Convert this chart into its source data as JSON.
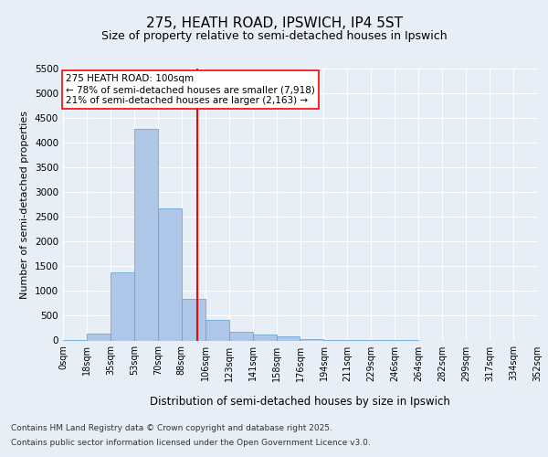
{
  "title_line1": "275, HEATH ROAD, IPSWICH, IP4 5ST",
  "title_line2": "Size of property relative to semi-detached houses in Ipswich",
  "xlabel": "Distribution of semi-detached houses by size in Ipswich",
  "ylabel": "Number of semi-detached properties",
  "footer_line1": "Contains HM Land Registry data © Crown copyright and database right 2025.",
  "footer_line2": "Contains public sector information licensed under the Open Government Licence v3.0.",
  "annotation_line1": "275 HEATH ROAD: 100sqm",
  "annotation_line2": "← 78% of semi-detached houses are smaller (7,918)",
  "annotation_line3": "21% of semi-detached houses are larger (2,163) →",
  "bar_left_edges": [
    0,
    17.6,
    35.3,
    52.9,
    70.6,
    88.2,
    105.9,
    123.5,
    141.2,
    158.8,
    176.5,
    194.1,
    211.8,
    229.4,
    247.1,
    264.7,
    282.4,
    300.0,
    317.6,
    335.3
  ],
  "bar_heights": [
    10,
    130,
    1380,
    4280,
    2680,
    850,
    420,
    175,
    120,
    80,
    20,
    5,
    3,
    2,
    1,
    0,
    0,
    0,
    0,
    0
  ],
  "bar_width": 17.6,
  "bar_color": "#aec6e8",
  "bar_edgecolor": "#5a9fd4",
  "vline_x": 100,
  "vline_color": "red",
  "ylim": [
    0,
    5500
  ],
  "yticks": [
    0,
    500,
    1000,
    1500,
    2000,
    2500,
    3000,
    3500,
    4000,
    4500,
    5000,
    5500
  ],
  "xtick_labels": [
    "0sqm",
    "18sqm",
    "35sqm",
    "53sqm",
    "70sqm",
    "88sqm",
    "106sqm",
    "123sqm",
    "141sqm",
    "158sqm",
    "176sqm",
    "194sqm",
    "211sqm",
    "229sqm",
    "246sqm",
    "264sqm",
    "282sqm",
    "299sqm",
    "317sqm",
    "334sqm",
    "352sqm"
  ],
  "xtick_positions": [
    0,
    17.6,
    35.3,
    52.9,
    70.6,
    88.2,
    105.9,
    123.5,
    141.2,
    158.8,
    176.5,
    194.1,
    211.8,
    229.4,
    247.1,
    264.7,
    282.4,
    300.0,
    317.6,
    335.3,
    352.9
  ],
  "background_color": "#e8eef5",
  "plot_bg_color": "#e8eef5",
  "grid_color": "#ffffff",
  "xlim": [
    0,
    352.9
  ]
}
